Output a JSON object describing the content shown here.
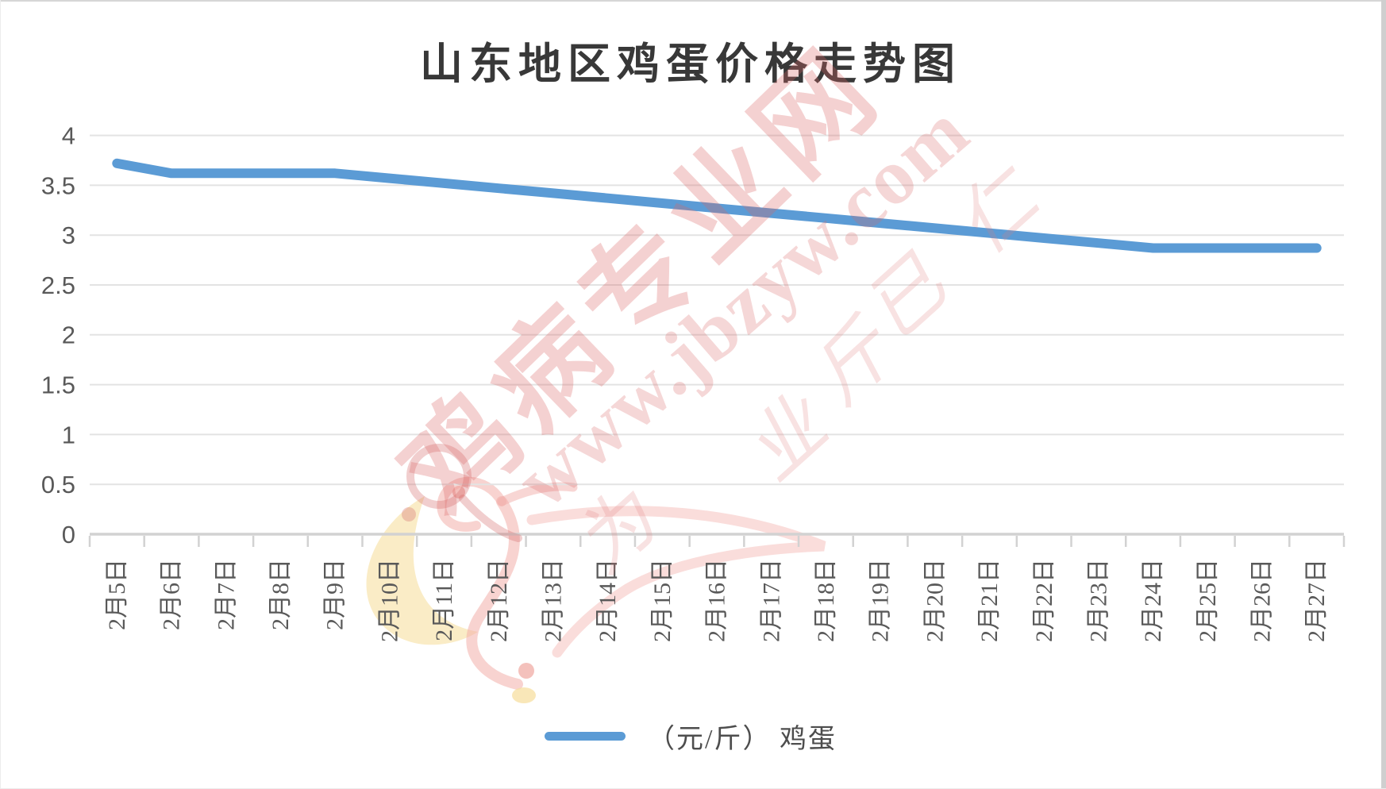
{
  "chart": {
    "title": "山东地区鸡蛋价格走势图"
  },
  "legend": {
    "label": "（元/斤） 鸡蛋"
  },
  "watermark": {
    "site_name": "鸡病专业网",
    "site_url": "www.jbzyw.com",
    "script_chars": [
      "为",
      "业",
      "斤",
      "已",
      "仁"
    ],
    "color": "#D96666"
  },
  "colors": {
    "line": "#5B9BD5",
    "grid": "#E3E3E3",
    "axis": "#D2D2D2",
    "tick_label": "#595959",
    "title_text": "#383838"
  },
  "chart_data": {
    "type": "line",
    "title": "山东地区鸡蛋价格走势图",
    "categories": [
      "2月5日",
      "2月6日",
      "2月7日",
      "2月8日",
      "2月9日",
      "2月10日",
      "2月11日",
      "2月12日",
      "2月13日",
      "2月14日",
      "2月15日",
      "2月16日",
      "2月17日",
      "2月18日",
      "2月19日",
      "2月20日",
      "2月21日",
      "2月22日",
      "2月23日",
      "2月24日",
      "2月25日",
      "2月26日",
      "2月27日"
    ],
    "series": [
      {
        "name": "（元/斤） 鸡蛋",
        "color": "#5B9BD5",
        "values": [
          3.72,
          3.62,
          3.62,
          3.62,
          3.62,
          3.57,
          3.52,
          3.47,
          3.42,
          3.37,
          3.32,
          3.27,
          3.22,
          3.17,
          3.12,
          3.07,
          3.02,
          2.97,
          2.92,
          2.87,
          2.87,
          2.87,
          2.87
        ]
      }
    ],
    "xlabel": "",
    "ylabel": "",
    "ylim": [
      0,
      4
    ],
    "ytick_interval": 0.5,
    "ytick_labels": [
      "4",
      "3.5",
      "3",
      "2.5",
      "2",
      "1.5",
      "1",
      "0.5",
      "0"
    ],
    "grid": true,
    "legend_position": "bottom"
  }
}
